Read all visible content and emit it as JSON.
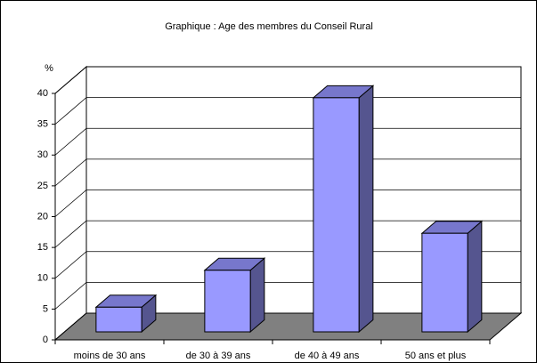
{
  "chart_data": {
    "type": "bar",
    "title": "Graphique : Age des membres du Conseil Rural",
    "y_label": "%",
    "categories": [
      "moins de 30 ans",
      "de 30 à 39 ans",
      "de 40 à 49 ans",
      "50 ans et plus"
    ],
    "values": [
      4,
      10,
      38,
      16
    ],
    "color": "#9999ff",
    "ylim": [
      0,
      40
    ],
    "yticks": [
      0,
      5,
      10,
      15,
      20,
      25,
      30,
      35,
      40
    ],
    "grid": true
  }
}
